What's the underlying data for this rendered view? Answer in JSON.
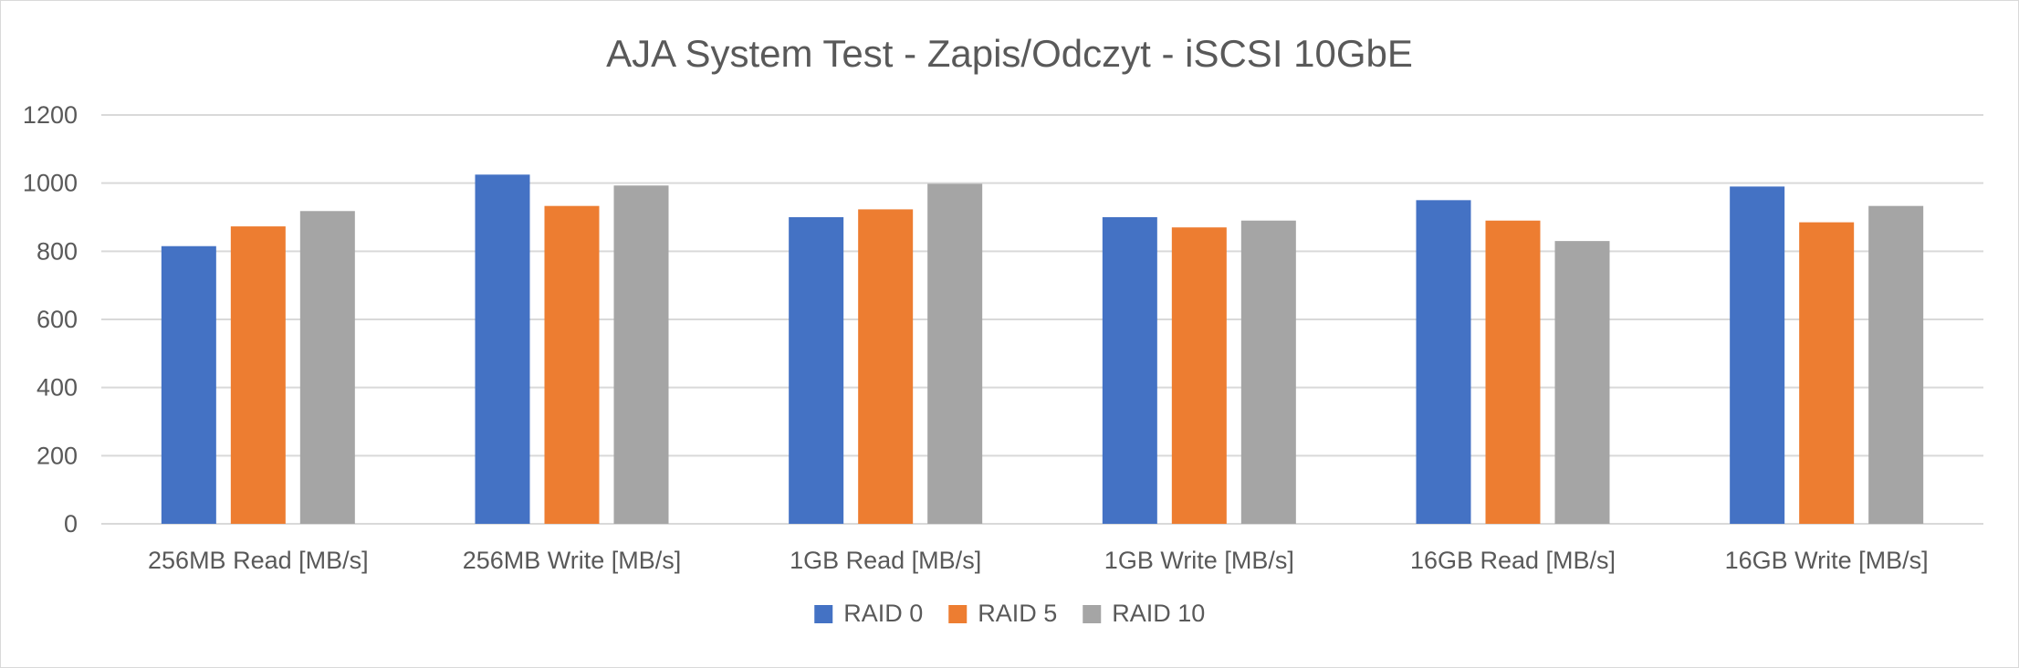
{
  "chart_data": {
    "type": "bar",
    "title": "AJA System Test - Zapis/Odczyt - iSCSI 10GbE",
    "xlabel": "",
    "ylabel": "",
    "ylim": [
      0,
      1200
    ],
    "yticks": [
      0,
      200,
      400,
      600,
      800,
      1000,
      1200
    ],
    "grid": true,
    "legend_position": "bottom",
    "categories": [
      "256MB Read [MB/s]",
      "256MB Write [MB/s]",
      "1GB Read [MB/s]",
      "1GB Write [MB/s]",
      "16GB Read [MB/s]",
      "16GB Write [MB/s]"
    ],
    "series": [
      {
        "name": "RAID 0",
        "color": "#4472c4",
        "values": [
          815,
          1025,
          900,
          900,
          950,
          990
        ]
      },
      {
        "name": "RAID 5",
        "color": "#ed7d31",
        "values": [
          873,
          933,
          923,
          870,
          890,
          885
        ]
      },
      {
        "name": "RAID 10",
        "color": "#a5a5a5",
        "values": [
          918,
          993,
          998,
          890,
          830,
          933
        ]
      }
    ]
  }
}
